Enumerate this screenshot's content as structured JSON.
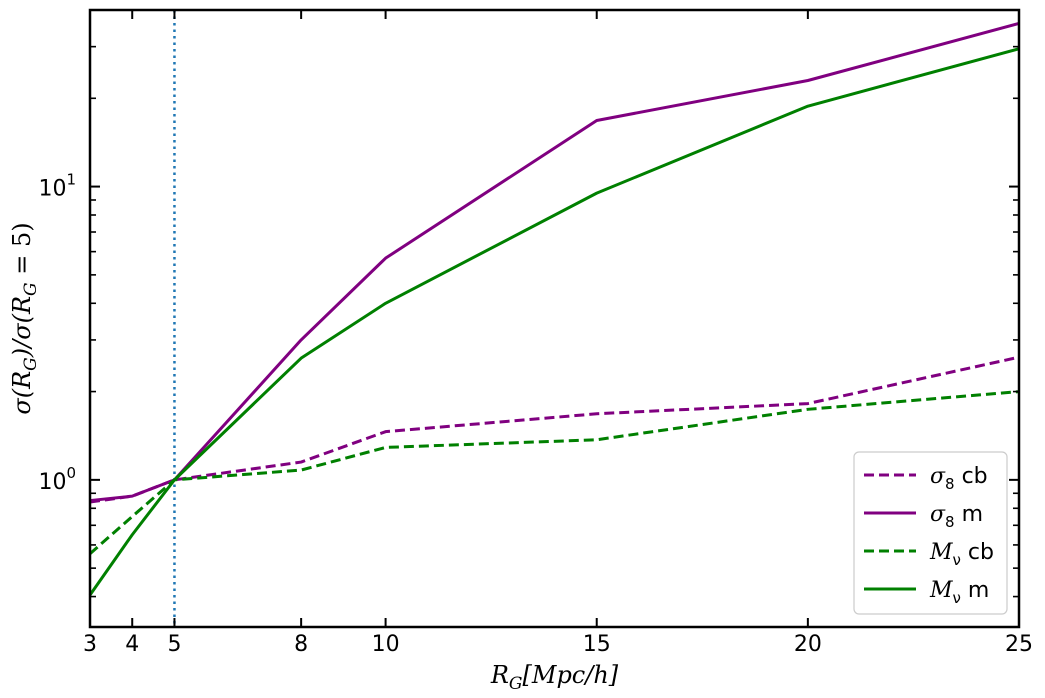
{
  "chart_data": {
    "type": "line",
    "x_scale": "linear",
    "y_scale": "log",
    "xlabel": "R_G[Mpc/h]",
    "ylabel": "σ(R_G)/σ(R_G = 5)",
    "xlim": [
      3,
      25
    ],
    "ylim": [
      0.315,
      40
    ],
    "x_ticks": [
      3,
      4,
      5,
      8,
      10,
      15,
      20,
      25
    ],
    "y_ticks": [
      {
        "value": 1,
        "base": "10",
        "exp": "0"
      },
      {
        "value": 10,
        "base": "10",
        "exp": "1"
      }
    ],
    "reference_vline": {
      "x": 5,
      "color": "#1f77b4",
      "style": "dotted"
    },
    "legend_position": "lower-right",
    "x": [
      3,
      4,
      5,
      8,
      10,
      15,
      20,
      25
    ],
    "series": [
      {
        "name": "σ8 cb",
        "name_base": "σ",
        "name_sub": "8",
        "name_suffix": " cb",
        "color": "#800080",
        "dash": "dashed",
        "values": [
          0.84,
          0.88,
          1.0,
          1.15,
          1.46,
          1.68,
          1.82,
          2.62
        ]
      },
      {
        "name": "σ8 m",
        "name_base": "σ",
        "name_sub": "8",
        "name_suffix": " m",
        "color": "#800080",
        "dash": "solid",
        "values": [
          0.85,
          0.88,
          1.0,
          3.0,
          5.7,
          16.8,
          23.0,
          36.0
        ]
      },
      {
        "name": "Mν cb",
        "name_base": "M",
        "name_sub": "ν",
        "name_suffix": " cb",
        "color": "#008000",
        "dash": "dashed",
        "values": [
          0.56,
          0.75,
          1.0,
          1.08,
          1.29,
          1.37,
          1.74,
          2.0
        ]
      },
      {
        "name": "Mν m",
        "name_base": "M",
        "name_sub": "ν",
        "name_suffix": " m",
        "color": "#008000",
        "dash": "solid",
        "values": [
          0.405,
          0.65,
          1.0,
          2.6,
          4.0,
          9.5,
          18.8,
          29.5
        ]
      }
    ]
  }
}
